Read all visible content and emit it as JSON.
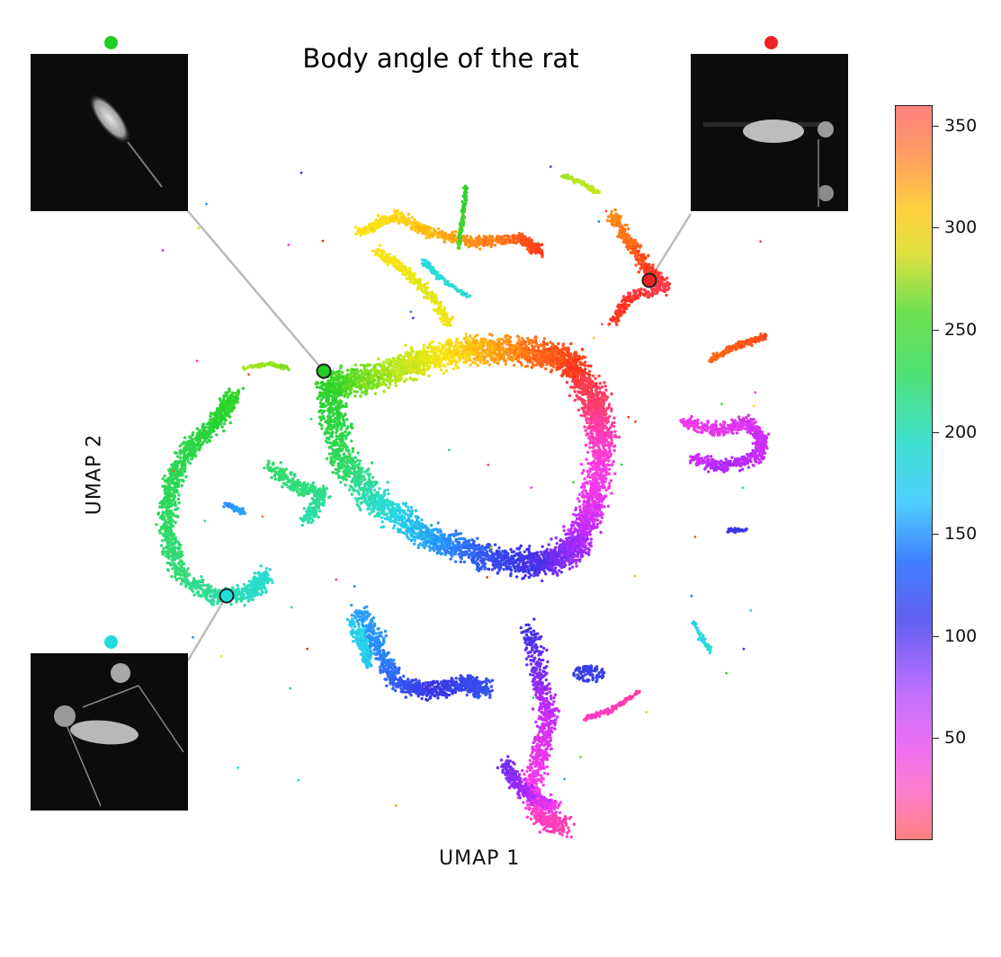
{
  "chart_data": {
    "type": "scatter",
    "title": "Body angle of the rat",
    "xlabel": "UMAP 1",
    "ylabel": "UMAP 2",
    "colorbar": {
      "label": "",
      "range": [
        0,
        360
      ],
      "ticks": [
        50,
        100,
        150,
        200,
        250,
        300,
        350
      ],
      "colormap": "hsv-like (red at 0/360, magenta ~50, blue ~110, cyan ~180, green ~240, yellow ~300, orange ~330)"
    },
    "annotations": [
      {
        "marker_color": "#22cc22",
        "description": "rat body angle ~240"
      },
      {
        "marker_color": "#ee2222",
        "description": "rat body angle ~360"
      },
      {
        "marker_color": "#22dddd",
        "description": "rat body angle ~190"
      }
    ],
    "clusters": [
      {
        "center_angle": 240,
        "region": "upper-left arm"
      },
      {
        "center_angle": 300,
        "region": "top"
      },
      {
        "center_angle": 345,
        "region": "upper-right"
      },
      {
        "center_angle": 40,
        "region": "right"
      },
      {
        "center_angle": 110,
        "region": "lower-middle"
      },
      {
        "center_angle": 180,
        "region": "middle-left"
      },
      {
        "center_angle": 225,
        "region": "left loop"
      },
      {
        "center_angle": 30,
        "region": "bottom tail"
      }
    ]
  }
}
